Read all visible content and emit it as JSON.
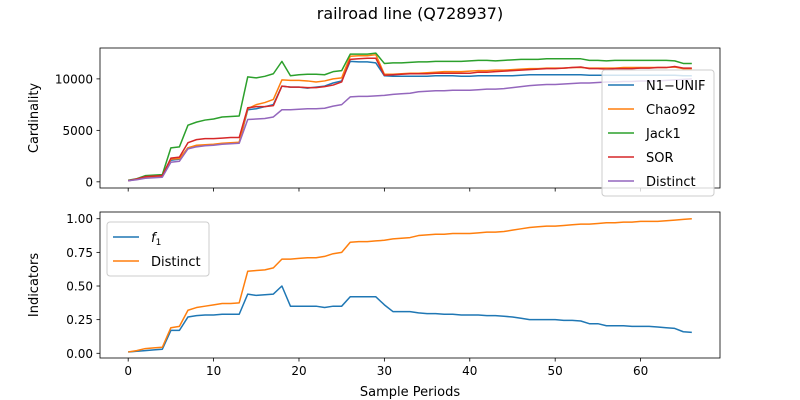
{
  "title": "railroad line (Q728937)",
  "chart_data": [
    {
      "type": "line",
      "title": "",
      "xlabel": "",
      "ylabel": "Cardinality",
      "xlim": [
        -3.3,
        69.3
      ],
      "ylim": [
        -600,
        13000
      ],
      "yticks": [
        0,
        5000,
        10000
      ],
      "ytick_labels": [
        "0",
        "5000",
        "10000"
      ],
      "xticks": [
        0,
        10,
        20,
        30,
        40,
        50,
        60
      ],
      "xtick_labels": [
        "",
        "",
        "",
        "",
        "",
        "",
        ""
      ],
      "grid": false,
      "legend": "right",
      "x": [
        0,
        1,
        2,
        3,
        4,
        5,
        6,
        7,
        8,
        9,
        10,
        11,
        12,
        13,
        14,
        15,
        16,
        17,
        18,
        19,
        20,
        21,
        22,
        23,
        24,
        25,
        26,
        27,
        28,
        29,
        30,
        31,
        32,
        33,
        34,
        35,
        36,
        37,
        38,
        39,
        40,
        41,
        42,
        43,
        44,
        45,
        46,
        47,
        48,
        49,
        50,
        51,
        52,
        53,
        54,
        55,
        56,
        57,
        58,
        59,
        60,
        61,
        62,
        63,
        64,
        65,
        66
      ],
      "series": [
        {
          "name": "N1−UNIF",
          "color": "#1f77b4",
          "values": [
            100,
            250,
            450,
            500,
            550,
            2100,
            2200,
            3300,
            3500,
            3550,
            3600,
            3700,
            3750,
            3800,
            7000,
            7100,
            7300,
            7500,
            9300,
            9200,
            9200,
            9100,
            9200,
            9300,
            9600,
            9800,
            11700,
            11650,
            11650,
            11550,
            10300,
            10250,
            10250,
            10250,
            10250,
            10250,
            10300,
            10300,
            10300,
            10250,
            10250,
            10300,
            10300,
            10300,
            10300,
            10300,
            10350,
            10400,
            10400,
            10400,
            10400,
            10400,
            10400,
            10400,
            10350,
            10350,
            10350,
            10350,
            10350,
            10350,
            10350,
            10350,
            10350,
            10350,
            10350,
            10300,
            10300
          ]
        },
        {
          "name": "Chao92",
          "color": "#ff7f0e",
          "values": [
            100,
            250,
            450,
            500,
            550,
            2200,
            2250,
            3300,
            3550,
            3600,
            3650,
            3750,
            3800,
            3850,
            7100,
            7500,
            7700,
            8000,
            9900,
            9850,
            9850,
            9800,
            9700,
            9800,
            10000,
            10100,
            12200,
            12250,
            12250,
            12350,
            10450,
            10450,
            10500,
            10550,
            10550,
            10600,
            10650,
            10700,
            10700,
            10700,
            10750,
            10800,
            10800,
            10850,
            10850,
            10900,
            10950,
            11000,
            11000,
            11050,
            11050,
            11050,
            11100,
            11100,
            11050,
            11050,
            11050,
            11050,
            11100,
            11100,
            11100,
            11100,
            11100,
            11100,
            11150,
            11000,
            11000
          ]
        },
        {
          "name": "Jack1",
          "color": "#2ca02c",
          "values": [
            150,
            300,
            600,
            650,
            700,
            3300,
            3400,
            5500,
            5800,
            6000,
            6100,
            6300,
            6350,
            6400,
            10200,
            10100,
            10250,
            10500,
            11700,
            10300,
            10400,
            10450,
            10450,
            10400,
            10700,
            10800,
            12400,
            12400,
            12400,
            12500,
            11500,
            11550,
            11550,
            11600,
            11650,
            11650,
            11700,
            11700,
            11700,
            11700,
            11750,
            11800,
            11800,
            11750,
            11800,
            11850,
            11900,
            11900,
            11900,
            11950,
            11950,
            11950,
            11950,
            11950,
            11800,
            11800,
            11750,
            11800,
            11800,
            11800,
            11800,
            11800,
            11800,
            11800,
            11750,
            11500,
            11500
          ]
        },
        {
          "name": "SOR",
          "color": "#d62728",
          "values": [
            120,
            280,
            500,
            550,
            600,
            2300,
            2400,
            3800,
            4100,
            4200,
            4200,
            4250,
            4300,
            4300,
            7200,
            7300,
            7300,
            7400,
            9300,
            9200,
            9200,
            9150,
            9150,
            9250,
            9400,
            9700,
            11900,
            11950,
            12000,
            12000,
            10350,
            10400,
            10450,
            10500,
            10500,
            10500,
            10550,
            10550,
            10550,
            10550,
            10550,
            10650,
            10650,
            10700,
            10750,
            10800,
            10850,
            10900,
            10950,
            11000,
            11000,
            11050,
            11100,
            11150,
            11000,
            11000,
            10950,
            11000,
            11000,
            11000,
            11050,
            11050,
            11100,
            11100,
            11200,
            11050,
            11050
          ]
        },
        {
          "name": "Distinct",
          "color": "#9467bd",
          "values": [
            100,
            200,
            350,
            400,
            450,
            1900,
            2000,
            3200,
            3400,
            3500,
            3550,
            3650,
            3700,
            3750,
            6050,
            6100,
            6150,
            6300,
            7000,
            7000,
            7050,
            7100,
            7100,
            7150,
            7350,
            7500,
            8250,
            8300,
            8300,
            8350,
            8400,
            8500,
            8550,
            8600,
            8750,
            8800,
            8850,
            8850,
            8900,
            8900,
            8900,
            8950,
            9000,
            9000,
            9050,
            9150,
            9250,
            9350,
            9400,
            9450,
            9450,
            9500,
            9550,
            9600,
            9600,
            9650,
            9700,
            9700,
            9750,
            9750,
            9800,
            9800,
            9800,
            9850,
            9900,
            9950,
            10000
          ]
        }
      ]
    },
    {
      "type": "line",
      "title": "",
      "xlabel": "Sample Periods",
      "ylabel": "Indicators",
      "xlim": [
        -3.3,
        69.3
      ],
      "ylim": [
        -0.035,
        1.05
      ],
      "yticks": [
        0,
        0.25,
        0.5,
        0.75,
        1.0
      ],
      "ytick_labels": [
        "0.00",
        "0.25",
        "0.50",
        "0.75",
        "1.00"
      ],
      "xticks": [
        0,
        10,
        20,
        30,
        40,
        50,
        60
      ],
      "xtick_labels": [
        "0",
        "10",
        "20",
        "30",
        "40",
        "50",
        "60"
      ],
      "grid": false,
      "legend": "top-left",
      "x": [
        0,
        1,
        2,
        3,
        4,
        5,
        6,
        7,
        8,
        9,
        10,
        11,
        12,
        13,
        14,
        15,
        16,
        17,
        18,
        19,
        20,
        21,
        22,
        23,
        24,
        25,
        26,
        27,
        28,
        29,
        30,
        31,
        32,
        33,
        34,
        35,
        36,
        37,
        38,
        39,
        40,
        41,
        42,
        43,
        44,
        45,
        46,
        47,
        48,
        49,
        50,
        51,
        52,
        53,
        54,
        55,
        56,
        57,
        58,
        59,
        60,
        61,
        62,
        63,
        64,
        65,
        66
      ],
      "series": [
        {
          "name": "f",
          "name_sub": "1",
          "color": "#1f77b4",
          "values": [
            0.01,
            0.015,
            0.02,
            0.025,
            0.03,
            0.17,
            0.17,
            0.27,
            0.28,
            0.285,
            0.285,
            0.29,
            0.29,
            0.29,
            0.44,
            0.43,
            0.435,
            0.44,
            0.5,
            0.35,
            0.35,
            0.35,
            0.35,
            0.34,
            0.35,
            0.35,
            0.42,
            0.42,
            0.42,
            0.42,
            0.36,
            0.31,
            0.31,
            0.31,
            0.3,
            0.295,
            0.295,
            0.29,
            0.29,
            0.285,
            0.285,
            0.285,
            0.28,
            0.28,
            0.275,
            0.27,
            0.26,
            0.25,
            0.25,
            0.25,
            0.25,
            0.245,
            0.245,
            0.24,
            0.22,
            0.22,
            0.205,
            0.205,
            0.205,
            0.2,
            0.2,
            0.2,
            0.195,
            0.19,
            0.185,
            0.16,
            0.155
          ]
        },
        {
          "name": "Distinct",
          "color": "#ff7f0e",
          "values": [
            0.01,
            0.02,
            0.035,
            0.04,
            0.045,
            0.19,
            0.2,
            0.32,
            0.34,
            0.35,
            0.36,
            0.37,
            0.37,
            0.375,
            0.61,
            0.615,
            0.62,
            0.635,
            0.7,
            0.7,
            0.705,
            0.71,
            0.71,
            0.72,
            0.74,
            0.75,
            0.825,
            0.83,
            0.83,
            0.835,
            0.84,
            0.85,
            0.855,
            0.86,
            0.875,
            0.88,
            0.885,
            0.885,
            0.89,
            0.89,
            0.89,
            0.895,
            0.9,
            0.9,
            0.905,
            0.915,
            0.925,
            0.935,
            0.94,
            0.945,
            0.945,
            0.95,
            0.955,
            0.96,
            0.96,
            0.965,
            0.97,
            0.97,
            0.975,
            0.975,
            0.98,
            0.98,
            0.98,
            0.985,
            0.99,
            0.995,
            1.0
          ]
        }
      ]
    }
  ]
}
